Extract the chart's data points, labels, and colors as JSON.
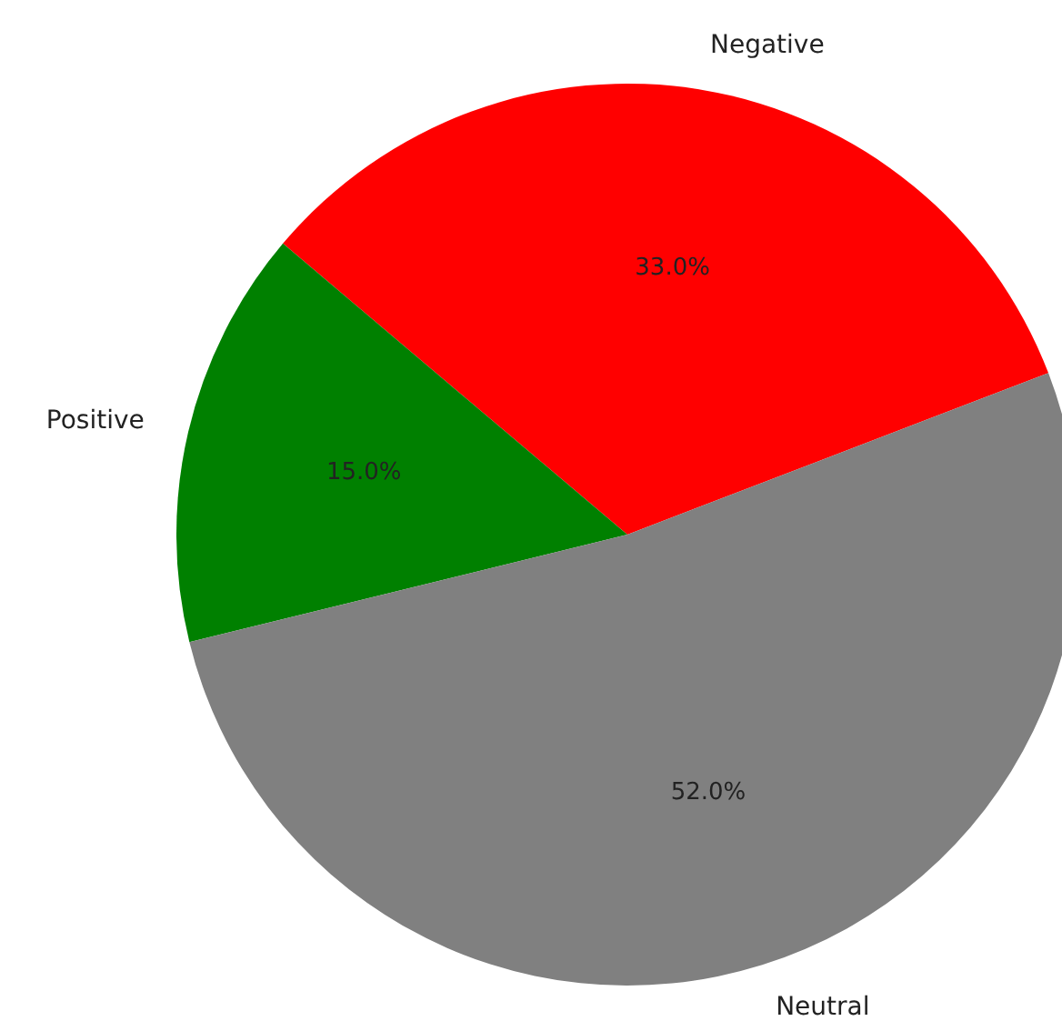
{
  "chart_data": {
    "type": "pie",
    "categories": [
      "Negative",
      "Positive",
      "Neutral"
    ],
    "values": [
      33,
      15,
      52
    ],
    "colors": [
      "#ff0000",
      "#008000",
      "#808080"
    ],
    "value_labels": [
      "33.0%",
      "15.0%",
      "52.0%"
    ]
  }
}
